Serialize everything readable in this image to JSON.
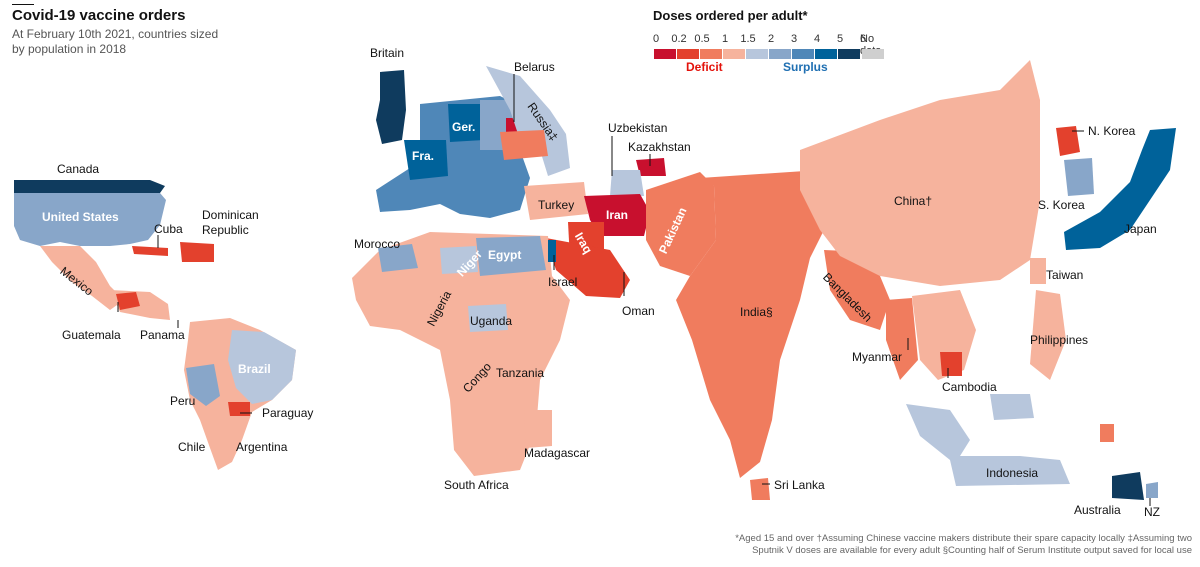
{
  "title": "Covid-19 vaccine orders",
  "subtitle": "At February 10th 2021, countries sized by population in 2018",
  "legend": {
    "title": "Doses ordered per adult*",
    "ticks": [
      "0",
      "0.2",
      "0.5",
      "1",
      "1.5",
      "2",
      "3",
      "4",
      "5",
      "6"
    ],
    "colors": [
      "#c8102e",
      "#e3412d",
      "#f07c5e",
      "#f6b39d",
      "#b7c6dc",
      "#88a6c9",
      "#4f87b8",
      "#00629a",
      "#0f3b5e"
    ],
    "deficit_label": "Deficit",
    "surplus_label": "Surplus",
    "deficit_color": "#e3120b",
    "surplus_color": "#1f6fb2",
    "nodata_label": "No data",
    "nodata_color": "#cfcfcf"
  },
  "labels": {
    "canada": "Canada",
    "us": "United States",
    "cuba": "Cuba",
    "dominican": "Dominican Republic",
    "mexico": "Mexico",
    "guatemala": "Guatemala",
    "panama": "Panama",
    "brazil": "Brazil",
    "peru": "Peru",
    "paraguay": "Paraguay",
    "chile": "Chile",
    "argentina": "Argentina",
    "britain": "Britain",
    "belarus": "Belarus",
    "russia": "Russia‡",
    "germany": "Ger.",
    "france": "Fra.",
    "uzbekistan": "Uzbekistan",
    "kazakhstan": "Kazakhstan",
    "turkey": "Turkey",
    "iran": "Iran",
    "iraq": "Iraq",
    "pakistan": "Pakistan",
    "morocco": "Morocco",
    "niger": "Niger",
    "egypt": "Egypt",
    "israel": "Israel",
    "oman": "Oman",
    "nigeria": "Nigeria",
    "uganda": "Uganda",
    "congo": "Congo",
    "tanzania": "Tanzania",
    "madagascar": "Madagascar",
    "south_africa": "South Africa",
    "india": "India§",
    "sri_lanka": "Sri Lanka",
    "china": "China†",
    "bangladesh": "Bangladesh",
    "myanmar": "Myanmar",
    "cambodia": "Cambodia",
    "n_korea": "N. Korea",
    "s_korea": "S. Korea",
    "japan": "Japan",
    "taiwan": "Taiwan",
    "philippines": "Philippines",
    "indonesia": "Indonesia",
    "australia": "Australia",
    "nz": "NZ"
  },
  "footnote": "*Aged 15 and over †Assuming Chinese vaccine makers distribute their spare capacity locally ‡Assuming two Sputnik V doses are available for every adult §Counting half of Serum Institute output saved for local use"
}
